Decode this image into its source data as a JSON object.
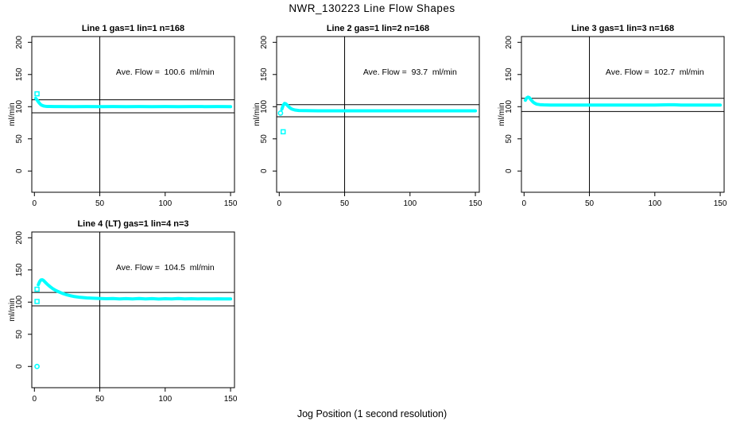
{
  "figure": {
    "title": "NWR_130223  Line Flow Shapes",
    "xlabel": "Jog Position (1 second resolution)",
    "background_color": "#ffffff",
    "line_color": "#000000",
    "series_color": "#00ffff"
  },
  "chart_data": [
    {
      "type": "scatter",
      "title": "Line 1 gas=1 lin=1 n=168",
      "annotation": "Ave. Flow =  100.6  ml/min",
      "ave_flow_ml_min": 100.6,
      "n": 168,
      "ylabel": "ml/min",
      "xlim": [
        -2,
        153
      ],
      "ylim": [
        -33,
        209
      ],
      "x_ticks": [
        0,
        50,
        100,
        150
      ],
      "y_ticks": [
        0,
        50,
        100,
        150,
        200
      ],
      "x_tick_labels": [
        "0",
        "50",
        "100",
        "150"
      ],
      "y_tick_labels": [
        "0",
        "50",
        "100",
        "150",
        "200"
      ],
      "vline_x": 50,
      "hlines": [
        110.7,
        90.5
      ],
      "points": [
        [
          1,
          113
        ],
        [
          2,
          110.5
        ],
        [
          3,
          107.5
        ],
        [
          4,
          105
        ],
        [
          5,
          103
        ],
        [
          6,
          101.8
        ],
        [
          7,
          101.1
        ],
        [
          8,
          100.7
        ],
        [
          9,
          100.5
        ],
        [
          10,
          100.4
        ],
        [
          12,
          100.3
        ],
        [
          15,
          100.2
        ],
        [
          20,
          100.2
        ],
        [
          30,
          100.1
        ],
        [
          40,
          100.2
        ],
        [
          50,
          100.1
        ],
        [
          60,
          100.2
        ],
        [
          70,
          100.1
        ],
        [
          80,
          100.2
        ],
        [
          90,
          100.1
        ],
        [
          100,
          100.2
        ],
        [
          110,
          100.1
        ],
        [
          120,
          100.2
        ],
        [
          130,
          100.1
        ],
        [
          140,
          100.2
        ],
        [
          150,
          100.1
        ]
      ],
      "markers": [
        {
          "x": 2,
          "y": 120,
          "shape": "square"
        }
      ]
    },
    {
      "type": "scatter",
      "title": "Line 2 gas=1 lin=2 n=168",
      "annotation": "Ave. Flow =  93.7  ml/min",
      "ave_flow_ml_min": 93.7,
      "n": 168,
      "ylabel": "ml/min",
      "xlim": [
        -2,
        153
      ],
      "ylim": [
        -33,
        209
      ],
      "x_ticks": [
        0,
        50,
        100,
        150
      ],
      "y_ticks": [
        0,
        50,
        100,
        150,
        200
      ],
      "x_tick_labels": [
        "0",
        "50",
        "100",
        "150"
      ],
      "y_tick_labels": [
        "0",
        "50",
        "100",
        "150",
        "200"
      ],
      "vline_x": 50,
      "hlines": [
        103.1,
        84.3
      ],
      "points": [
        [
          2,
          96
        ],
        [
          3,
          102
        ],
        [
          4,
          105
        ],
        [
          5,
          104.5
        ],
        [
          6,
          102.5
        ],
        [
          7,
          100.5
        ],
        [
          8,
          98.5
        ],
        [
          9,
          97
        ],
        [
          10,
          96
        ],
        [
          12,
          94.8
        ],
        [
          15,
          94.1
        ],
        [
          20,
          93.8
        ],
        [
          30,
          93.6
        ],
        [
          40,
          93.5
        ],
        [
          50,
          93.6
        ],
        [
          60,
          93.5
        ],
        [
          70,
          93.6
        ],
        [
          80,
          93.5
        ],
        [
          90,
          93.6
        ],
        [
          100,
          93.5
        ],
        [
          110,
          93.6
        ],
        [
          120,
          93.5
        ],
        [
          130,
          93.6
        ],
        [
          140,
          93.5
        ],
        [
          150,
          93.6
        ]
      ],
      "markers": [
        {
          "x": 1,
          "y": 90,
          "shape": "circle"
        },
        {
          "x": 3,
          "y": 61,
          "shape": "square"
        }
      ]
    },
    {
      "type": "scatter",
      "title": "Line 3 gas=1 lin=3 n=168",
      "annotation": "Ave. Flow =  102.7  ml/min",
      "ave_flow_ml_min": 102.7,
      "n": 168,
      "ylabel": "ml/min",
      "xlim": [
        -2,
        153
      ],
      "ylim": [
        -33,
        209
      ],
      "x_ticks": [
        0,
        50,
        100,
        150
      ],
      "y_ticks": [
        0,
        50,
        100,
        150,
        200
      ],
      "x_tick_labels": [
        "0",
        "50",
        "100",
        "150"
      ],
      "y_tick_labels": [
        "0",
        "50",
        "100",
        "150",
        "200"
      ],
      "vline_x": 50,
      "hlines": [
        113.0,
        92.4
      ],
      "points": [
        [
          1,
          110
        ],
        [
          2,
          113.5
        ],
        [
          3,
          114.8
        ],
        [
          4,
          114
        ],
        [
          5,
          111.5
        ],
        [
          6,
          109
        ],
        [
          7,
          107
        ],
        [
          8,
          105.5
        ],
        [
          9,
          104.5
        ],
        [
          10,
          103.8
        ],
        [
          12,
          103.2
        ],
        [
          15,
          102.8
        ],
        [
          20,
          102.6
        ],
        [
          30,
          102.5
        ],
        [
          40,
          102.6
        ],
        [
          50,
          102.5
        ],
        [
          60,
          102.6
        ],
        [
          70,
          102.5
        ],
        [
          80,
          102.6
        ],
        [
          90,
          102.5
        ],
        [
          100,
          102.6
        ],
        [
          110,
          102.9
        ],
        [
          115,
          103
        ],
        [
          120,
          102.6
        ],
        [
          130,
          102.5
        ],
        [
          140,
          102.6
        ],
        [
          150,
          102.5
        ]
      ],
      "markers": []
    },
    {
      "type": "scatter",
      "title": "Line 4 (LT) gas=1 lin=4 n=3",
      "annotation": "Ave. Flow =  104.5  ml/min",
      "ave_flow_ml_min": 104.5,
      "n": 3,
      "ylabel": "ml/min",
      "xlim": [
        -2,
        153
      ],
      "ylim": [
        -33,
        209
      ],
      "x_ticks": [
        0,
        50,
        100,
        150
      ],
      "y_ticks": [
        0,
        50,
        100,
        150,
        200
      ],
      "x_tick_labels": [
        "0",
        "50",
        "100",
        "150"
      ],
      "y_tick_labels": [
        "0",
        "50",
        "100",
        "150",
        "200"
      ],
      "vline_x": 50,
      "hlines": [
        115.0,
        94.1
      ],
      "points": [
        [
          3,
          127
        ],
        [
          4,
          132
        ],
        [
          5,
          134.5
        ],
        [
          6,
          134.8
        ],
        [
          7,
          133.5
        ],
        [
          8,
          131.5
        ],
        [
          9,
          129.5
        ],
        [
          10,
          127.5
        ],
        [
          12,
          124
        ],
        [
          14,
          121
        ],
        [
          16,
          118.5
        ],
        [
          18,
          116.5
        ],
        [
          20,
          114.8
        ],
        [
          22,
          113.2
        ],
        [
          25,
          111.2
        ],
        [
          28,
          109.7
        ],
        [
          30,
          108.9
        ],
        [
          35,
          107.4
        ],
        [
          40,
          106.5
        ],
        [
          45,
          106
        ],
        [
          50,
          105.7
        ],
        [
          55,
          105.3
        ],
        [
          60,
          105.6
        ],
        [
          65,
          104.9
        ],
        [
          70,
          105.4
        ],
        [
          75,
          105
        ],
        [
          80,
          105.5
        ],
        [
          85,
          105
        ],
        [
          90,
          105.4
        ],
        [
          95,
          104.8
        ],
        [
          100,
          105.3
        ],
        [
          105,
          105
        ],
        [
          110,
          105.5
        ],
        [
          115,
          104.9
        ],
        [
          120,
          105.3
        ],
        [
          125,
          105
        ],
        [
          130,
          105.2
        ],
        [
          135,
          104.9
        ],
        [
          140,
          105.2
        ],
        [
          145,
          105
        ],
        [
          150,
          105.1
        ]
      ],
      "markers": [
        {
          "x": 2,
          "y": 120,
          "shape": "square"
        },
        {
          "x": 2,
          "y": 101,
          "shape": "square"
        },
        {
          "x": 2,
          "y": 0,
          "shape": "circle"
        }
      ]
    }
  ]
}
